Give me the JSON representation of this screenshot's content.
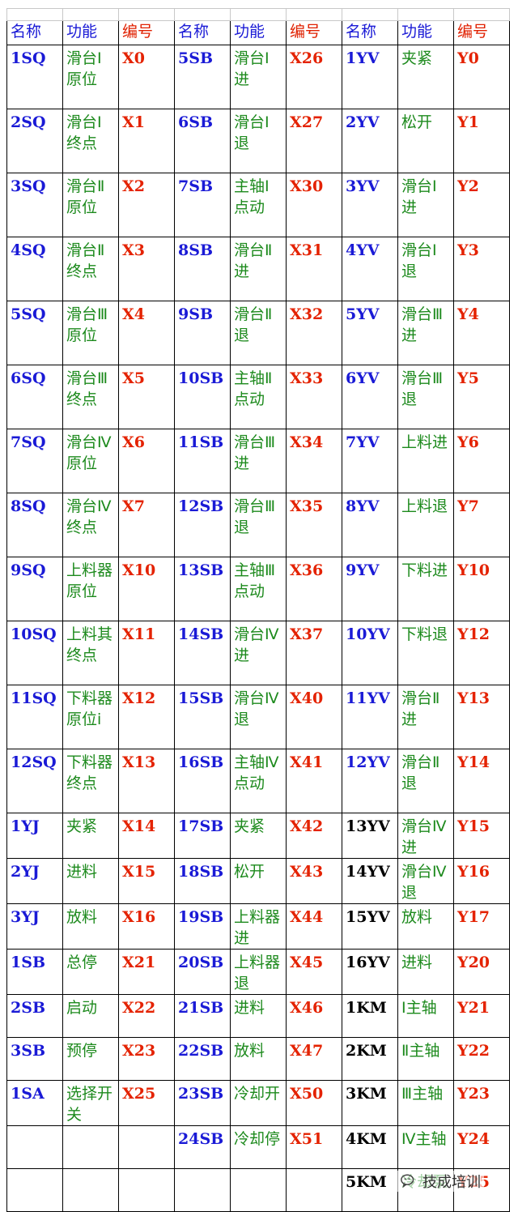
{
  "headers": [
    "名称",
    "功能",
    "编号",
    "名称",
    "功能",
    "编号",
    "名称",
    "功能",
    "编号"
  ],
  "rows": [
    [
      "1SQ",
      "滑台Ⅰ原位",
      "X0",
      "5SB",
      "滑台Ⅰ进",
      "X26",
      "1YV",
      "夹紧",
      "Y0"
    ],
    [
      "2SQ",
      "滑台Ⅰ终点",
      "X1",
      "6SB",
      "滑台Ⅰ退",
      "X27",
      "2YV",
      "松开",
      "Y1"
    ],
    [
      "3SQ",
      "滑台Ⅱ原位",
      "X2",
      "7SB",
      "主轴Ⅰ点动",
      "X30",
      "3YV",
      "滑台Ⅰ进",
      "Y2"
    ],
    [
      "4SQ",
      "滑台Ⅱ终点",
      "X3",
      "8SB",
      "滑台Ⅱ进",
      "X31",
      "4YV",
      "滑台Ⅰ退",
      "Y3"
    ],
    [
      "5SQ",
      "滑台Ⅲ原位",
      "X4",
      "9SB",
      "滑台Ⅱ退",
      "X32",
      "5YV",
      "滑台Ⅲ进",
      "Y4"
    ],
    [
      "6SQ",
      "滑台Ⅲ终点",
      "X5",
      "10SB",
      "主轴Ⅱ点动",
      "X33",
      "6YV",
      "滑台Ⅲ退",
      "Y5"
    ],
    [
      "7SQ",
      "滑台Ⅳ原位",
      "X6",
      "11SB",
      "滑台Ⅲ进",
      "X34",
      "7YV",
      "上料进",
      "Y6"
    ],
    [
      "8SQ",
      "滑台Ⅳ终点",
      "X7",
      "12SB",
      "滑台Ⅲ退",
      "X35",
      "8YV",
      "上料退",
      "Y7"
    ],
    [
      "9SQ",
      "上料器原位",
      "X10",
      "13SB",
      "主轴Ⅲ点动",
      "X36",
      "9YV",
      "下料进",
      "Y10"
    ],
    [
      "10SQ",
      "上料其终点",
      "X11",
      "14SB",
      "滑台Ⅳ进",
      "X37",
      "10YV",
      "下料退",
      "Y12"
    ],
    [
      "11SQ",
      "下料器原位i",
      "X12",
      "15SB",
      "滑台Ⅳ退",
      "X40",
      "11YV",
      "滑台Ⅱ进",
      "Y13"
    ],
    [
      "12SQ",
      "下料器终点",
      "X13",
      "16SB",
      "主轴Ⅳ点动",
      "X41",
      "12YV",
      "滑台Ⅱ退",
      "Y14"
    ],
    [
      "1YJ",
      "夹紧",
      "X14",
      "17SB",
      "夹紧",
      "X42",
      "13YV",
      "滑台Ⅳ进",
      "Y15"
    ],
    [
      "2YJ",
      "进料",
      "X15",
      "18SB",
      "松开",
      "X43",
      "14YV",
      "滑台Ⅳ退",
      "Y16"
    ],
    [
      "3YJ",
      "放料",
      "X16",
      "19SB",
      "上料器进",
      "X44",
      "15YV",
      "放料",
      "Y17"
    ],
    [
      "1SB",
      "总停",
      "X21",
      "20SB",
      "上料器退",
      "X45",
      "16YV",
      "进料",
      "Y20"
    ],
    [
      "2SB",
      "启动",
      "X22",
      "21SB",
      "进料",
      "X46",
      "1KM",
      "Ⅰ主轴",
      "Y21"
    ],
    [
      "3SB",
      "预停",
      "X23",
      "22SB",
      "放料",
      "X47",
      "2KM",
      "Ⅱ主轴",
      "Y22"
    ],
    [
      "1SA",
      "选择开关",
      "X25",
      "23SB",
      "冷却开",
      "X50",
      "3KM",
      "Ⅲ主轴",
      "Y23"
    ],
    [
      "",
      "",
      "",
      "24SB",
      "冷却停",
      "X51",
      "4KM",
      "Ⅳ主轴",
      "Y24"
    ],
    [
      "",
      "",
      "",
      "",
      "",
      "",
      "5KM",
      "冷却泵",
      "Y25"
    ]
  ],
  "black_name_rows_col7_from": 12,
  "row_heights": [
    79,
    79,
    79,
    79,
    79,
    79,
    79,
    79,
    79,
    79,
    79,
    79,
    53,
    53,
    53,
    53,
    53,
    53,
    53,
    53,
    53
  ],
  "watermark": {
    "icon": "wechat-bubble-icon",
    "text": "技成培训"
  },
  "colors": {
    "name": "#1a1ad6",
    "function": "#1d8a1d",
    "code": "#e42200",
    "black_name": "#000000"
  }
}
